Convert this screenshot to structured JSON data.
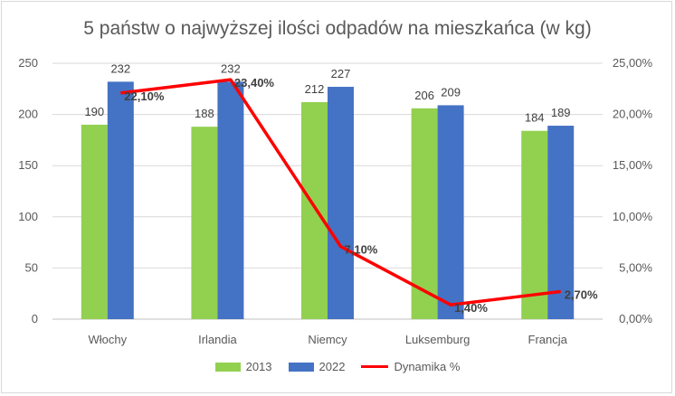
{
  "chart_data": {
    "type": "bar",
    "title": "5 państw o najwyższej ilości odpadów na mieszkańca (w kg)",
    "categories": [
      "Włochy",
      "Irlandia",
      "Niemcy",
      "Luksemburg",
      "Francja"
    ],
    "series": [
      {
        "name": "2013",
        "type": "bar",
        "axis": "left",
        "color": "#92d050",
        "values": [
          190,
          188,
          212,
          206,
          184
        ],
        "labels": [
          "190",
          "188",
          "212",
          "206",
          "184"
        ]
      },
      {
        "name": "2022",
        "type": "bar",
        "axis": "left",
        "color": "#4472c4",
        "values": [
          232,
          232,
          227,
          209,
          189
        ],
        "labels": [
          "232",
          "232",
          "227",
          "209",
          "189"
        ]
      },
      {
        "name": "Dynamika %",
        "type": "line",
        "axis": "right",
        "color": "#ff0000",
        "values": [
          22.1,
          23.4,
          7.1,
          1.4,
          2.7
        ],
        "labels": [
          "22,10%",
          "23,40%",
          "7,10%",
          "1,40%",
          "2,70%"
        ]
      }
    ],
    "y_left": {
      "min": 0,
      "max": 250,
      "step": 50,
      "tick_labels": [
        "0",
        "50",
        "100",
        "150",
        "200",
        "250"
      ]
    },
    "y_right": {
      "min": 0,
      "max": 25,
      "step": 5,
      "tick_labels": [
        "0,00%",
        "5,00%",
        "10,00%",
        "15,00%",
        "20,00%",
        "25,00%"
      ]
    },
    "xlabel": "",
    "ylabel": "",
    "grid": true,
    "legend_position": "bottom"
  }
}
